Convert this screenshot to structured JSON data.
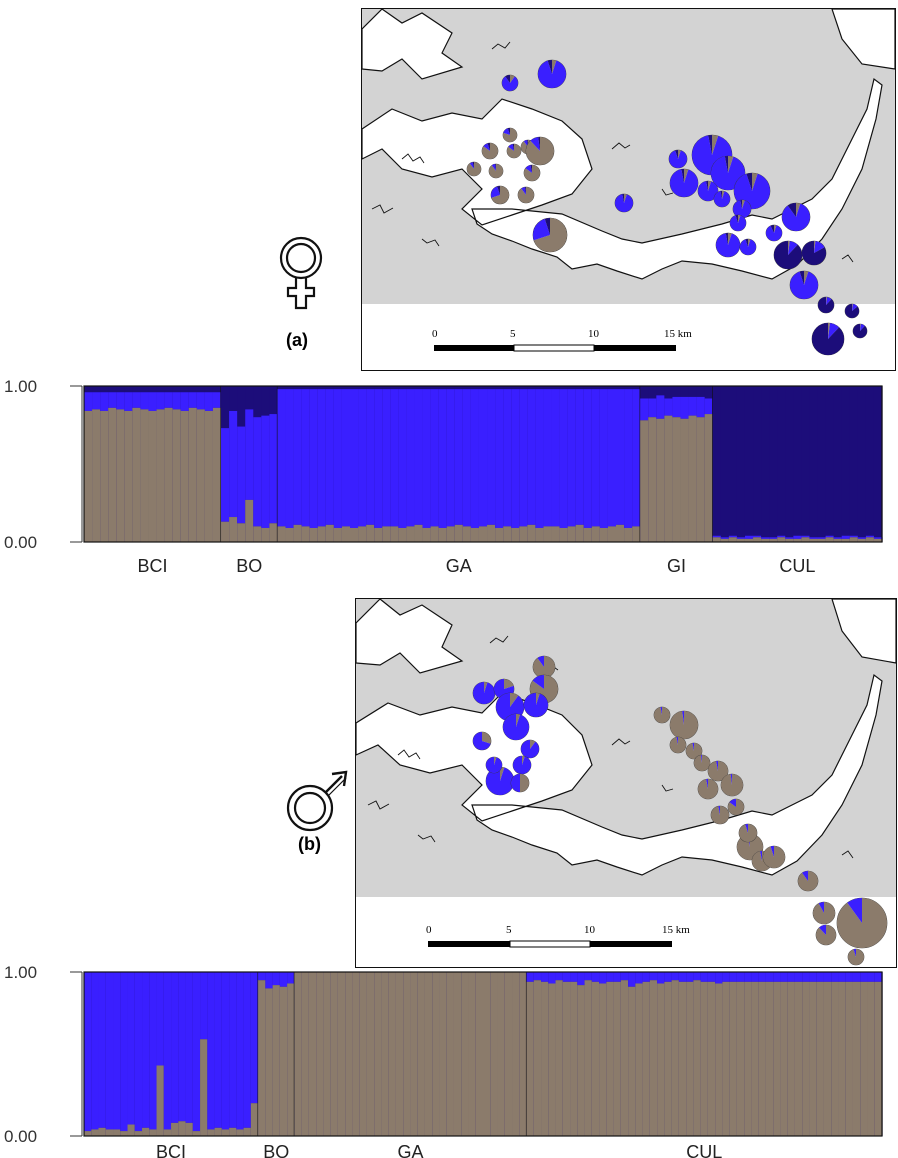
{
  "colors": {
    "grey": "#8b7b6b",
    "blue": "#3a1fff",
    "navy": "#1c0d7a",
    "land": "#d3d3d3"
  },
  "panel_a": {
    "label": "(a)",
    "symbol": "female-symbol"
  },
  "panel_b": {
    "label": "(b)",
    "symbol": "male-symbol"
  },
  "map_scale": {
    "ticks": [
      "0",
      "5",
      "10",
      "15 km"
    ]
  },
  "chart_data": [
    {
      "type": "bar",
      "title": "",
      "stacked": true,
      "yticks": [
        "1.00",
        "0.00"
      ],
      "ylim": [
        0,
        1
      ],
      "populations": [
        "BCI",
        "BO",
        "GA",
        "GI",
        "CUL"
      ],
      "groups": [
        {
          "name": "BCI",
          "grey": [
            0.84,
            0.85,
            0.84,
            0.86,
            0.85,
            0.84,
            0.86,
            0.85,
            0.84,
            0.85,
            0.86,
            0.85,
            0.84,
            0.86,
            0.85,
            0.84,
            0.86
          ],
          "blue": [
            0.12,
            0.11,
            0.12,
            0.1,
            0.11,
            0.12,
            0.1,
            0.11,
            0.12,
            0.11,
            0.1,
            0.11,
            0.12,
            0.1,
            0.11,
            0.12,
            0.1
          ]
        },
        {
          "name": "BO",
          "grey": [
            0.13,
            0.16,
            0.12,
            0.27,
            0.1,
            0.09,
            0.12
          ],
          "blue": [
            0.6,
            0.68,
            0.62,
            0.58,
            0.7,
            0.72,
            0.7
          ]
        },
        {
          "name": "GA",
          "grey": [
            0.1,
            0.09,
            0.11,
            0.1,
            0.09,
            0.1,
            0.11,
            0.09,
            0.1,
            0.09,
            0.1,
            0.11,
            0.09,
            0.1,
            0.1,
            0.09,
            0.1,
            0.11,
            0.09,
            0.1,
            0.09,
            0.1,
            0.11,
            0.1,
            0.09,
            0.1,
            0.11,
            0.09,
            0.1,
            0.09,
            0.1,
            0.11,
            0.09,
            0.1,
            0.1,
            0.09,
            0.1,
            0.11,
            0.09,
            0.1,
            0.09,
            0.1,
            0.11,
            0.09,
            0.1
          ],
          "blue": [
            0.88,
            0.89,
            0.87,
            0.88,
            0.89,
            0.88,
            0.87,
            0.89,
            0.88,
            0.89,
            0.88,
            0.87,
            0.89,
            0.88,
            0.88,
            0.89,
            0.88,
            0.87,
            0.89,
            0.88,
            0.89,
            0.88,
            0.87,
            0.88,
            0.89,
            0.88,
            0.87,
            0.89,
            0.88,
            0.89,
            0.88,
            0.87,
            0.89,
            0.88,
            0.88,
            0.89,
            0.88,
            0.87,
            0.89,
            0.88,
            0.89,
            0.88,
            0.87,
            0.89,
            0.88
          ]
        },
        {
          "name": "GI",
          "grey": [
            0.78,
            0.8,
            0.79,
            0.81,
            0.8,
            0.79,
            0.81,
            0.8,
            0.82
          ],
          "blue": [
            0.14,
            0.12,
            0.15,
            0.11,
            0.13,
            0.14,
            0.12,
            0.13,
            0.1
          ]
        },
        {
          "name": "CUL",
          "grey": [
            0.03,
            0.02,
            0.03,
            0.02,
            0.02,
            0.03,
            0.02,
            0.02,
            0.03,
            0.02,
            0.02,
            0.03,
            0.02,
            0.02,
            0.03,
            0.02,
            0.02,
            0.03,
            0.02,
            0.03,
            0.02
          ],
          "blue": [
            0.01,
            0.01,
            0.01,
            0.01,
            0.02,
            0.01,
            0.01,
            0.01,
            0.01,
            0.01,
            0.02,
            0.01,
            0.01,
            0.01,
            0.01,
            0.01,
            0.02,
            0.01,
            0.01,
            0.01,
            0.01
          ]
        }
      ]
    },
    {
      "type": "bar",
      "title": "",
      "stacked": true,
      "yticks": [
        "1.00",
        "0.00"
      ],
      "ylim": [
        0,
        1
      ],
      "populations": [
        "BCI",
        "BO",
        "GA",
        "CUL"
      ],
      "groups": [
        {
          "name": "BCI",
          "grey": [
            0.03,
            0.04,
            0.05,
            0.04,
            0.04,
            0.03,
            0.07,
            0.03,
            0.05,
            0.04,
            0.43,
            0.04,
            0.08,
            0.09,
            0.08,
            0.03,
            0.59,
            0.04,
            0.05,
            0.04,
            0.05,
            0.04,
            0.05,
            0.2
          ],
          "blue": [
            0.97,
            0.96,
            0.95,
            0.96,
            0.96,
            0.97,
            0.93,
            0.97,
            0.95,
            0.96,
            0.57,
            0.96,
            0.92,
            0.91,
            0.92,
            0.97,
            0.41,
            0.96,
            0.95,
            0.96,
            0.95,
            0.96,
            0.95,
            0.8
          ]
        },
        {
          "name": "BO",
          "grey": [
            0.95,
            0.9,
            0.92,
            0.91,
            0.93
          ],
          "blue": [
            0.05,
            0.1,
            0.08,
            0.09,
            0.07
          ]
        },
        {
          "name": "GA",
          "grey": [
            1,
            1,
            1,
            1,
            1,
            1,
            1,
            1,
            1,
            1,
            1,
            1,
            1,
            1,
            1,
            1,
            1,
            1,
            1,
            1,
            1,
            1,
            1,
            1,
            1,
            1,
            1,
            1,
            1,
            1,
            1,
            1
          ],
          "blue": [
            0,
            0,
            0,
            0,
            0,
            0,
            0,
            0,
            0,
            0,
            0,
            0,
            0,
            0,
            0,
            0,
            0,
            0,
            0,
            0,
            0,
            0,
            0,
            0,
            0,
            0,
            0,
            0,
            0,
            0,
            0,
            0
          ]
        },
        {
          "name": "CUL",
          "grey": [
            0.94,
            0.95,
            0.94,
            0.93,
            0.95,
            0.94,
            0.94,
            0.92,
            0.95,
            0.94,
            0.93,
            0.94,
            0.94,
            0.95,
            0.91,
            0.93,
            0.94,
            0.95,
            0.93,
            0.94,
            0.95,
            0.94,
            0.94,
            0.95,
            0.94,
            0.94,
            0.93,
            0.94,
            0.94,
            0.94,
            0.94,
            0.94,
            0.94,
            0.94,
            0.94,
            0.94,
            0.94,
            0.94,
            0.94,
            0.94,
            0.94,
            0.94,
            0.94,
            0.94,
            0.94,
            0.94,
            0.94,
            0.94,
            0.94
          ],
          "blue": [
            0.06,
            0.05,
            0.06,
            0.07,
            0.05,
            0.06,
            0.06,
            0.08,
            0.05,
            0.06,
            0.07,
            0.06,
            0.06,
            0.05,
            0.09,
            0.07,
            0.06,
            0.05,
            0.07,
            0.06,
            0.05,
            0.06,
            0.06,
            0.05,
            0.06,
            0.06,
            0.07,
            0.06,
            0.06,
            0.06,
            0.06,
            0.06,
            0.06,
            0.06,
            0.06,
            0.06,
            0.06,
            0.06,
            0.06,
            0.06,
            0.06,
            0.06,
            0.06,
            0.06,
            0.06,
            0.06,
            0.06,
            0.06,
            0.06
          ]
        }
      ]
    }
  ],
  "map_a_pies": [
    {
      "grey": 0.1,
      "blue": 0.8
    },
    {
      "grey": 0.05,
      "blue": 0.9
    },
    {
      "grey": 0.9,
      "blue": 0.07
    },
    {
      "grey": 0.85,
      "blue": 0.1
    },
    {
      "grey": 0.9,
      "blue": 0.08
    },
    {
      "grey": 0.8,
      "blue": 0.15
    },
    {
      "grey": 0.85,
      "blue": 0.12
    },
    {
      "grey": 0.9,
      "blue": 0.08
    },
    {
      "grey": 0.88,
      "blue": 0.1
    },
    {
      "grey": 0.85,
      "blue": 0.12
    },
    {
      "grey": 0.7,
      "blue": 0.25
    },
    {
      "grey": 0.9,
      "blue": 0.08
    },
    {
      "grey": 0.7,
      "blue": 0.25
    },
    {
      "grey": 0.05,
      "blue": 0.92
    },
    {
      "grey": 0.05,
      "blue": 0.9
    },
    {
      "grey": 0.05,
      "blue": 0.92
    },
    {
      "grey": 0.05,
      "blue": 0.92
    },
    {
      "grey": 0.05,
      "blue": 0.92
    },
    {
      "grey": 0.05,
      "blue": 0.9
    },
    {
      "grey": 0.05,
      "blue": 0.92
    },
    {
      "grey": 0.05,
      "blue": 0.92
    },
    {
      "grey": 0.05,
      "blue": 0.92
    },
    {
      "grey": 0.05,
      "blue": 0.9
    },
    {
      "grey": 0.05,
      "blue": 0.92
    },
    {
      "grey": 0.05,
      "blue": 0.9
    },
    {
      "grey": 0.05,
      "blue": 0.85
    },
    {
      "grey": 0.05,
      "blue": 0.88
    },
    {
      "grey": 0.02,
      "blue": 0.1
    },
    {
      "grey": 0.02,
      "blue": 0.15
    },
    {
      "grey": 0.05,
      "blue": 0.9
    },
    {
      "grey": 0.02,
      "blue": 0.1
    },
    {
      "grey": 0.02,
      "blue": 0.12
    },
    {
      "grey": 0.02,
      "blue": 0.1
    },
    {
      "grey": 0.02,
      "blue": 0.1
    }
  ],
  "map_b_pies": [
    {
      "grey": 0.9,
      "blue": 0.1
    },
    {
      "grey": 0.85,
      "blue": 0.15
    },
    {
      "grey": 0.05,
      "blue": 0.95
    },
    {
      "grey": 0.2,
      "blue": 0.8
    },
    {
      "grey": 0.1,
      "blue": 0.9
    },
    {
      "grey": 0.05,
      "blue": 0.95
    },
    {
      "grey": 0.05,
      "blue": 0.95
    },
    {
      "grey": 0.1,
      "blue": 0.9
    },
    {
      "grey": 0.3,
      "blue": 0.7
    },
    {
      "grey": 0.05,
      "blue": 0.95
    },
    {
      "grey": 0.05,
      "blue": 0.95
    },
    {
      "grey": 0.5,
      "blue": 0.5
    },
    {
      "grey": 0.05,
      "blue": 0.95
    },
    {
      "grey": 0.97,
      "blue": 0.03
    },
    {
      "grey": 0.98,
      "blue": 0.02
    },
    {
      "grey": 0.97,
      "blue": 0.03
    },
    {
      "grey": 0.97,
      "blue": 0.03
    },
    {
      "grey": 0.98,
      "blue": 0.02
    },
    {
      "grey": 0.97,
      "blue": 0.03
    },
    {
      "grey": 0.98,
      "blue": 0.02
    },
    {
      "grey": 0.97,
      "blue": 0.03
    },
    {
      "grey": 0.85,
      "blue": 0.15
    },
    {
      "grey": 0.97,
      "blue": 0.03
    },
    {
      "grey": 0.98,
      "blue": 0.02
    },
    {
      "grey": 0.97,
      "blue": 0.03
    },
    {
      "grey": 0.95,
      "blue": 0.05
    },
    {
      "grey": 0.95,
      "blue": 0.05
    },
    {
      "grey": 0.9,
      "blue": 0.1
    },
    {
      "grey": 0.92,
      "blue": 0.08
    },
    {
      "grey": 0.88,
      "blue": 0.12
    },
    {
      "grey": 0.9,
      "blue": 0.1
    },
    {
      "grey": 0.95,
      "blue": 0.05
    }
  ]
}
